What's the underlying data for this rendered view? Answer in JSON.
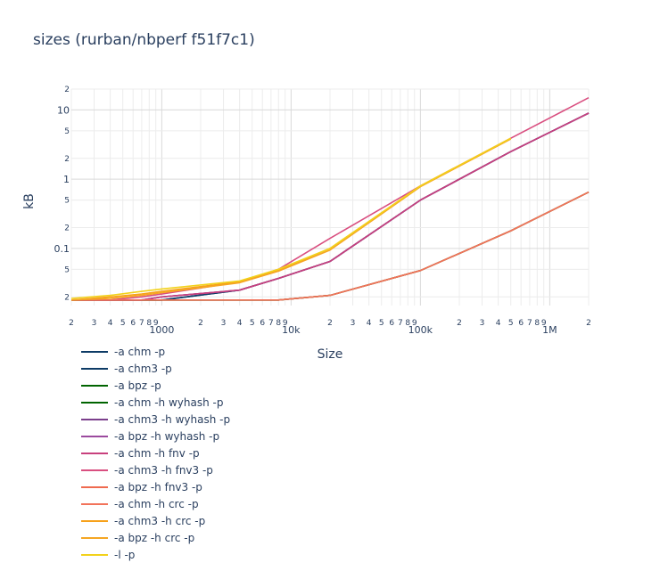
{
  "chart_data": {
    "type": "line",
    "title": "sizes (rurban/nbperf f51f7c1)",
    "xlabel": "Size",
    "ylabel": "kB",
    "xscale": "log",
    "yscale": "log",
    "xlim": [
      200,
      2000000
    ],
    "ylim": [
      0.015,
      20
    ],
    "x_major_ticks": [
      {
        "value": 1000,
        "label": "1000"
      },
      {
        "value": 10000,
        "label": "10k"
      },
      {
        "value": 100000,
        "label": "100k"
      },
      {
        "value": 1000000,
        "label": "1M"
      }
    ],
    "x_minor_ticks": [
      {
        "value": 200,
        "label": "2"
      },
      {
        "value": 300,
        "label": "3"
      },
      {
        "value": 400,
        "label": "4"
      },
      {
        "value": 500,
        "label": "5"
      },
      {
        "value": 600,
        "label": "6"
      },
      {
        "value": 700,
        "label": "7"
      },
      {
        "value": 800,
        "label": "8"
      },
      {
        "value": 900,
        "label": "9"
      },
      {
        "value": 2000,
        "label": "2"
      },
      {
        "value": 3000,
        "label": "3"
      },
      {
        "value": 4000,
        "label": "4"
      },
      {
        "value": 5000,
        "label": "5"
      },
      {
        "value": 6000,
        "label": "6"
      },
      {
        "value": 7000,
        "label": "7"
      },
      {
        "value": 8000,
        "label": "8"
      },
      {
        "value": 9000,
        "label": "9"
      },
      {
        "value": 20000,
        "label": "2"
      },
      {
        "value": 30000,
        "label": "3"
      },
      {
        "value": 40000,
        "label": "4"
      },
      {
        "value": 50000,
        "label": "5"
      },
      {
        "value": 60000,
        "label": "6"
      },
      {
        "value": 70000,
        "label": "7"
      },
      {
        "value": 80000,
        "label": "8"
      },
      {
        "value": 90000,
        "label": "9"
      },
      {
        "value": 200000,
        "label": "2"
      },
      {
        "value": 300000,
        "label": "3"
      },
      {
        "value": 400000,
        "label": "4"
      },
      {
        "value": 500000,
        "label": "5"
      },
      {
        "value": 600000,
        "label": "6"
      },
      {
        "value": 700000,
        "label": "7"
      },
      {
        "value": 800000,
        "label": "8"
      },
      {
        "value": 900000,
        "label": "9"
      },
      {
        "value": 2000000,
        "label": "2"
      }
    ],
    "y_major_ticks": [
      {
        "value": 0.1,
        "label": "0.1"
      },
      {
        "value": 1,
        "label": "1"
      },
      {
        "value": 10,
        "label": "10"
      }
    ],
    "y_minor_ticks": [
      {
        "value": 0.02,
        "label": "2"
      },
      {
        "value": 0.05,
        "label": "5"
      },
      {
        "value": 0.2,
        "label": "2"
      },
      {
        "value": 0.5,
        "label": "5"
      },
      {
        "value": 2,
        "label": "2"
      },
      {
        "value": 5,
        "label": "5"
      },
      {
        "value": 20,
        "label": "2"
      }
    ],
    "grid": true,
    "legend_position": "bottom-left",
    "series": [
      {
        "name": "-a chm -p",
        "color": "#0d3b66",
        "x": [
          200,
          400,
          700,
          1000,
          4000,
          8000,
          20000,
          100000,
          500000,
          2000000
        ],
        "y": [
          0.018,
          0.018,
          0.018,
          0.018,
          0.025,
          0.037,
          0.065,
          0.5,
          2.5,
          9
        ]
      },
      {
        "name": "-a chm3 -p",
        "color": "#0d3b66",
        "x": [
          200,
          400,
          700,
          1000,
          4000,
          8000,
          20000,
          100000,
          500000,
          2000000
        ],
        "y": [
          0.018,
          0.018,
          0.018,
          0.018,
          0.025,
          0.037,
          0.065,
          0.5,
          2.5,
          9
        ]
      },
      {
        "name": "-a bpz -p",
        "color": "#006400",
        "x": [
          200,
          400,
          700,
          1000,
          4000,
          8000,
          20000,
          100000,
          500000,
          2000000
        ],
        "y": [
          0.018,
          0.018,
          0.018,
          0.018,
          0.018,
          0.018,
          0.021,
          0.048,
          0.18,
          0.65
        ]
      },
      {
        "name": "-a chm -h wyhash -p",
        "color": "#006400",
        "x": [
          200,
          400,
          700,
          1000,
          4000,
          8000,
          20000,
          100000,
          500000,
          2000000
        ],
        "y": [
          0.018,
          0.018,
          0.018,
          0.018,
          0.018,
          0.018,
          0.021,
          0.048,
          0.18,
          0.65
        ]
      },
      {
        "name": "-a chm3 -h wyhash -p",
        "color": "#7b3f8c",
        "x": [
          200,
          400,
          700,
          1000,
          4000,
          8000,
          20000,
          100000,
          500000,
          2000000
        ],
        "y": [
          0.018,
          0.018,
          0.018,
          0.02,
          0.025,
          0.037,
          0.065,
          0.5,
          2.5,
          9
        ]
      },
      {
        "name": "-a bpz -h wyhash -p",
        "color": "#9b4a9e",
        "x": [
          200,
          400,
          700,
          1000,
          4000,
          8000,
          20000,
          100000,
          500000,
          2000000
        ],
        "y": [
          0.018,
          0.018,
          0.018,
          0.02,
          0.025,
          0.037,
          0.065,
          0.5,
          2.5,
          9
        ]
      },
      {
        "name": "-a chm -h fnv -p",
        "color": "#c8407d",
        "x": [
          200,
          400,
          700,
          1000,
          4000,
          8000,
          20000,
          100000,
          500000,
          2000000
        ],
        "y": [
          0.018,
          0.018,
          0.018,
          0.02,
          0.025,
          0.037,
          0.065,
          0.5,
          2.5,
          9
        ]
      },
      {
        "name": "-a chm3 -h fnv3 -p",
        "color": "#d94f80",
        "x": [
          200,
          400,
          700,
          1000,
          4000,
          8000,
          20000,
          100000,
          500000,
          2000000
        ],
        "y": [
          0.018,
          0.018,
          0.02,
          0.022,
          0.033,
          0.05,
          0.14,
          0.8,
          3.9,
          15
        ]
      },
      {
        "name": "-a bpz -h fnv3 -p",
        "color": "#ef6a4f",
        "x": [
          200,
          400,
          700,
          1000,
          4000,
          8000,
          20000,
          100000,
          500000,
          2000000
        ],
        "y": [
          0.018,
          0.018,
          0.018,
          0.018,
          0.018,
          0.018,
          0.021,
          0.048,
          0.18,
          0.65
        ]
      },
      {
        "name": "-a chm -h crc -p",
        "color": "#f2735a",
        "x": [
          200,
          400,
          700,
          1000,
          4000,
          8000,
          20000,
          100000,
          500000,
          2000000
        ],
        "y": [
          0.018,
          0.018,
          0.018,
          0.018,
          0.018,
          0.018,
          0.021,
          0.048,
          0.18,
          0.65
        ]
      },
      {
        "name": "-a chm3 -h crc -p",
        "color": "#f7a11a",
        "x": [
          200,
          400,
          700,
          1000,
          4000,
          8000,
          20000,
          100000,
          500000
        ],
        "y": [
          0.018,
          0.02,
          0.022,
          0.024,
          0.033,
          0.048,
          0.1,
          0.8,
          3.9
        ]
      },
      {
        "name": "-a bpz -h crc -p",
        "color": "#f5a623",
        "x": [
          200,
          400,
          700,
          1000,
          4000,
          8000,
          20000,
          100000,
          500000
        ],
        "y": [
          0.018,
          0.019,
          0.021,
          0.023,
          0.032,
          0.047,
          0.095,
          0.78,
          3.8
        ]
      },
      {
        "name": "-l -p",
        "color": "#f2d21b",
        "x": [
          200,
          400,
          700,
          1000,
          4000,
          8000,
          20000,
          100000,
          500000
        ],
        "y": [
          0.019,
          0.021,
          0.024,
          0.026,
          0.034,
          0.05,
          0.1,
          0.8,
          3.9
        ]
      }
    ]
  }
}
